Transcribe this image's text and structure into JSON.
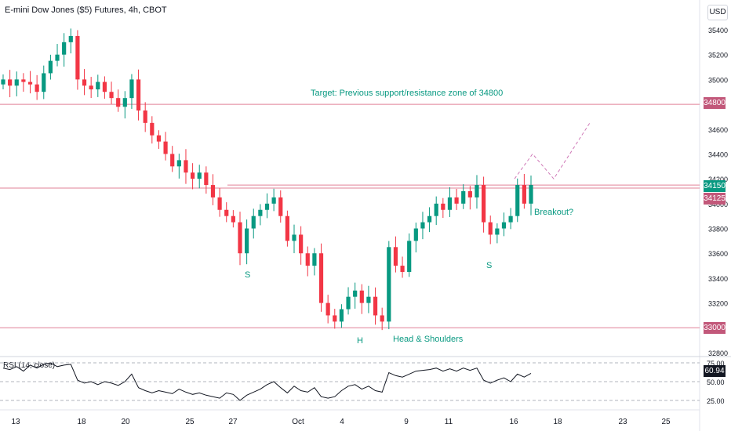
{
  "header": {
    "title": "E-mini Dow Jones ($5) Futures, 4h, CBOT",
    "currency": "USD"
  },
  "colors": {
    "up": "#089981",
    "down": "#f23645",
    "level_line": "#e08097",
    "tag_bg": "#c2587a",
    "tag_current": "#089981",
    "rsi_line": "#131722",
    "grid": "#eef0f3"
  },
  "chart_data": {
    "type": "candlestick",
    "title": "E-mini Dow Jones ($5) Futures, 4h, CBOT",
    "y_axis": {
      "ticks": [
        35400,
        35200,
        35000,
        34600,
        34400,
        34200,
        34000,
        33800,
        33600,
        33400,
        33200,
        32800
      ],
      "ylim": [
        32800,
        35400
      ]
    },
    "x_axis": {
      "ticks": [
        "13",
        "18",
        "20",
        "25",
        "27",
        "Oct",
        "4",
        "9",
        "11",
        "16",
        "18",
        "23",
        "25"
      ]
    },
    "price_levels": [
      {
        "label": "34800",
        "value": 34800
      },
      {
        "label": "34150",
        "value": 34150,
        "current": true
      },
      {
        "label": "34125",
        "value": 34125
      },
      {
        "label": "33000",
        "value": 33000
      }
    ],
    "annotations": {
      "target": "Target: Previous support/resistance zone of 34800",
      "left_shoulder": "S",
      "head": "H",
      "right_shoulder": "S",
      "pattern": "Head & Shoulders",
      "breakout": "Breakout?"
    },
    "projection": [
      34200,
      34400,
      34200,
      34650
    ],
    "close_path": [
      35000,
      34950,
      35000,
      34980,
      34960,
      34900,
      35050,
      35150,
      35200,
      35300,
      35350,
      35000,
      34950,
      34920,
      34980,
      34900,
      34850,
      34780,
      34850,
      35000,
      34750,
      34650,
      34550,
      34500,
      34400,
      34300,
      34350,
      34250,
      34200,
      34250,
      34150,
      34050,
      33950,
      33900,
      33850,
      33600,
      33800,
      33900,
      33950,
      34000,
      34050,
      33900,
      33700,
      33750,
      33600,
      33500,
      33600,
      33200,
      33100,
      33050,
      33150,
      33250,
      33300,
      33200,
      33250,
      33100,
      33050,
      33650,
      33500,
      33450,
      33700,
      33800,
      33850,
      33900,
      34000,
      33950,
      34050,
      34000,
      34100,
      34050,
      34150,
      33850,
      33750,
      33800,
      33850,
      33900,
      34150,
      34000,
      34150
    ],
    "rsi": {
      "label": "RSI (14, close)",
      "current": 60.94,
      "current_label": "60.94",
      "levels": [
        75,
        50,
        25
      ],
      "level_labels": [
        "75.00",
        "50.00",
        "25.00"
      ],
      "values": [
        68,
        66,
        70,
        64,
        72,
        68,
        73,
        75,
        70,
        72,
        73,
        52,
        48,
        50,
        46,
        50,
        48,
        45,
        50,
        60,
        42,
        38,
        35,
        38,
        36,
        34,
        40,
        36,
        33,
        35,
        32,
        30,
        28,
        35,
        33,
        25,
        32,
        36,
        40,
        46,
        50,
        42,
        35,
        44,
        38,
        36,
        42,
        30,
        28,
        30,
        38,
        44,
        46,
        40,
        44,
        38,
        36,
        62,
        58,
        56,
        60,
        64,
        65,
        66,
        68,
        64,
        67,
        64,
        68,
        65,
        68,
        52,
        48,
        52,
        55,
        50,
        60,
        56,
        61
      ]
    }
  }
}
